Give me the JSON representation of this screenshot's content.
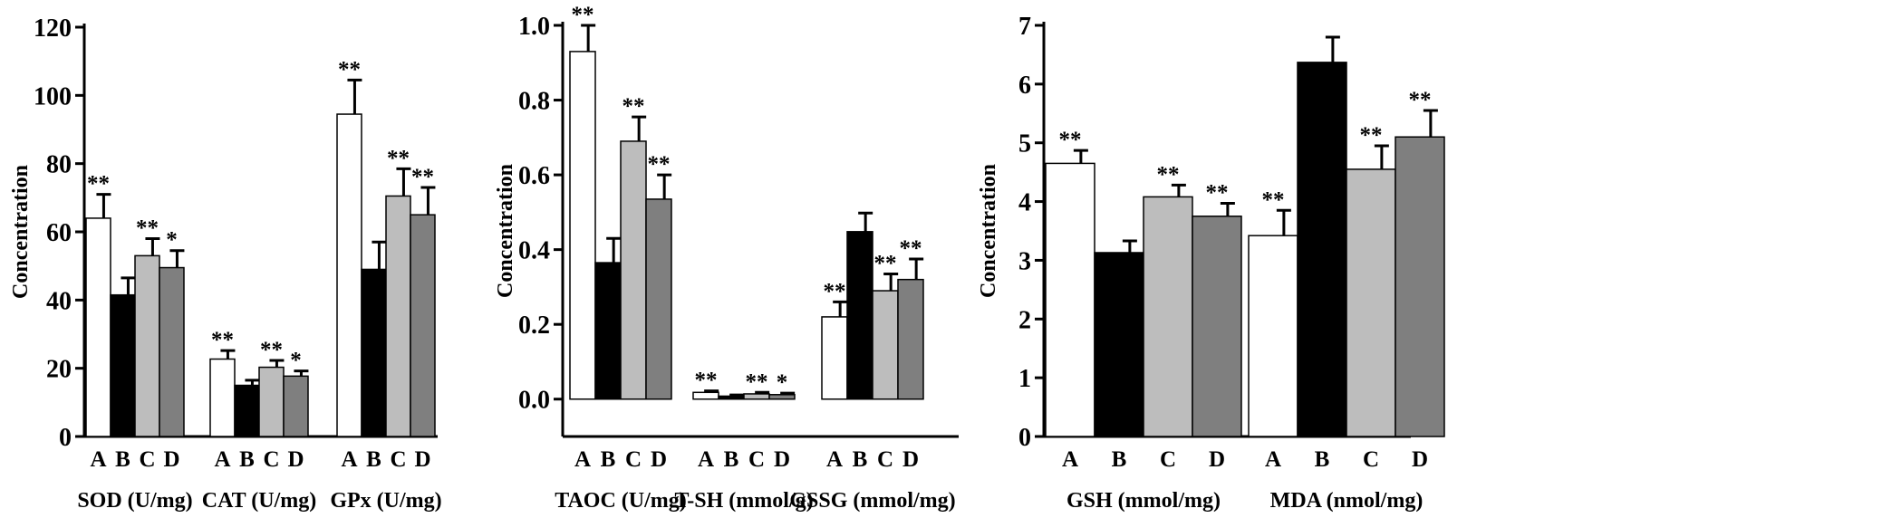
{
  "chart_data": [
    {
      "type": "bar",
      "ylabel": "Concentration",
      "ylim": [
        0,
        120
      ],
      "yticks": [
        0,
        20,
        40,
        60,
        80,
        100,
        120
      ],
      "ytick_labels": [
        "0",
        "20",
        "40",
        "60",
        "80",
        "100",
        "120"
      ],
      "treatments": [
        "A",
        "B",
        "C",
        "D"
      ],
      "groups": [
        {
          "label": "SOD (U/mg)",
          "values": [
            64,
            41.5,
            53,
            49.5
          ],
          "errors": [
            7,
            5,
            5,
            5
          ],
          "significance": [
            "**",
            "",
            "**",
            "*"
          ]
        },
        {
          "label": "CAT (U/mg)",
          "values": [
            22.7,
            15,
            20.3,
            17.7
          ],
          "errors": [
            2.5,
            1.5,
            2,
            1.5
          ],
          "significance": [
            "**",
            "",
            "**",
            "*"
          ]
        },
        {
          "label": "GPx (U/mg)",
          "values": [
            94.5,
            49,
            70.5,
            65
          ],
          "errors": [
            10,
            8,
            8,
            8
          ],
          "significance": [
            "**",
            "",
            "**",
            "**"
          ]
        }
      ]
    },
    {
      "type": "bar",
      "ylabel": "Concentration",
      "ylim": [
        -0.1,
        1.0
      ],
      "yticks": [
        0.0,
        0.2,
        0.4,
        0.6,
        0.8,
        1.0
      ],
      "ytick_labels": [
        "0.0",
        "0.2",
        "0.4",
        "0.6",
        "0.8",
        "1.0"
      ],
      "treatments": [
        "A",
        "B",
        "C",
        "D"
      ],
      "groups": [
        {
          "label": "TAOC (U/mg)",
          "values": [
            0.93,
            0.365,
            0.69,
            0.535
          ],
          "errors": [
            0.07,
            0.065,
            0.065,
            0.065
          ],
          "significance": [
            "**",
            "",
            "**",
            "**"
          ]
        },
        {
          "label": "T-SH (mmol/g)",
          "values": [
            0.018,
            0.008,
            0.014,
            0.012
          ],
          "errors": [
            0.004,
            0.003,
            0.004,
            0.004
          ],
          "significance": [
            "**",
            "",
            "**",
            "*"
          ]
        },
        {
          "label": "GSSG (mmol/mg)",
          "values": [
            0.22,
            0.448,
            0.29,
            0.32
          ],
          "errors": [
            0.04,
            0.05,
            0.045,
            0.055
          ],
          "significance": [
            "**",
            "",
            "**",
            "**"
          ]
        }
      ]
    },
    {
      "type": "bar",
      "ylabel": "Concentration",
      "ylim": [
        0,
        7
      ],
      "yticks": [
        0,
        1,
        2,
        3,
        4,
        5,
        6,
        7
      ],
      "ytick_labels": [
        "0",
        "1",
        "2",
        "3",
        "4",
        "5",
        "6",
        "7"
      ],
      "treatments": [
        "A",
        "B",
        "C",
        "D"
      ],
      "groups": [
        {
          "label": "GSH (mmol/mg)",
          "values": [
            4.65,
            3.13,
            4.08,
            3.75
          ],
          "errors": [
            0.22,
            0.2,
            0.2,
            0.22
          ],
          "significance": [
            "**",
            "",
            "**",
            "**"
          ]
        },
        {
          "label": "MDA (nmol/mg)",
          "values": [
            3.42,
            6.37,
            4.55,
            5.1
          ],
          "errors": [
            0.43,
            0.43,
            0.4,
            0.45
          ],
          "significance": [
            "**",
            "",
            "**",
            "**"
          ]
        }
      ]
    }
  ],
  "colors": {
    "A": "#ffffff",
    "B": "#000000",
    "C": "#bdbdbd",
    "D": "#7f7f7f"
  }
}
